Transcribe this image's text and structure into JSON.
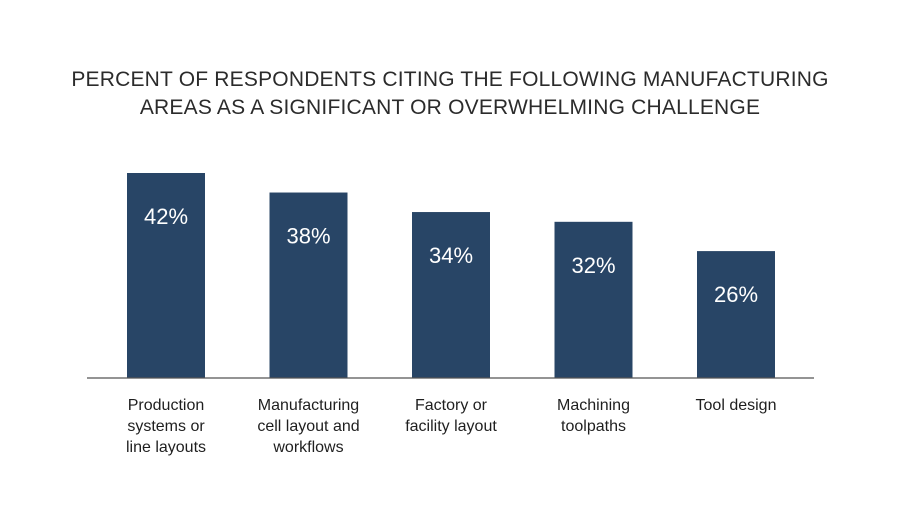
{
  "chart_data": {
    "type": "bar",
    "title_lines": [
      "PERCENT OF RESPONDENTS CITING THE FOLLOWING MANUFACTURING",
      "AREAS AS A SIGNIFICANT OR OVERWHELMING CHALLENGE"
    ],
    "categories": [
      [
        "Production",
        "systems or",
        "line layouts"
      ],
      [
        "Manufacturing",
        "cell layout and",
        "workflows"
      ],
      [
        "Factory or",
        "facility layout"
      ],
      [
        "Machining",
        "toolpaths"
      ],
      [
        "Tool design"
      ]
    ],
    "values": [
      42,
      38,
      34,
      32,
      26
    ],
    "value_labels": [
      "42%",
      "38%",
      "34%",
      "32%",
      "26%"
    ],
    "ylim": [
      0,
      42
    ],
    "grid": false,
    "bar_color": "#284566",
    "axis_color": "#555555"
  }
}
